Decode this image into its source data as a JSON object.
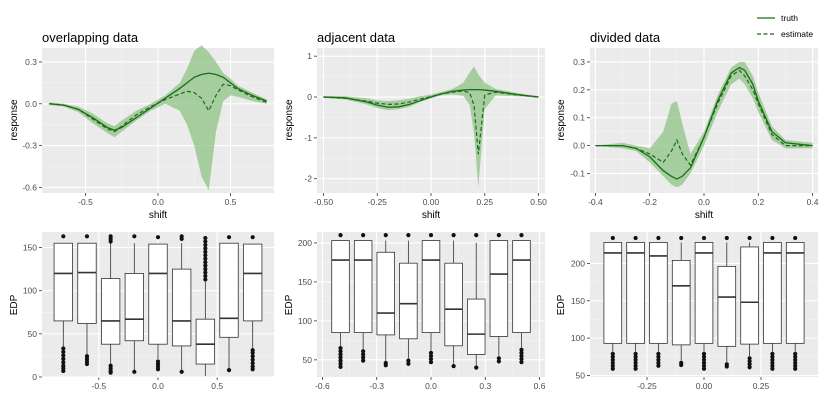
{
  "legend": {
    "items": [
      {
        "label": "truth",
        "style": "solid"
      },
      {
        "label": "estimate",
        "style": "dashed"
      }
    ]
  },
  "colors": {
    "panel_bg": "#ebebeb",
    "grid_major": "#ffffff",
    "line": "#1a6b1a",
    "band": "#8fc384",
    "box_fill": "#ffffff",
    "box_stroke": "#333333"
  },
  "chart_data": [
    {
      "type": "line",
      "title": "overlapping data",
      "xlabel": "shift",
      "ylabel": "response",
      "xlim": [
        -0.8,
        0.8
      ],
      "ylim": [
        -0.64,
        0.4
      ],
      "xticks": [
        -0.5,
        0.0,
        0.5
      ],
      "xtick_labels": [
        "-0.5",
        "0.0",
        "0.5"
      ],
      "yticks": [
        -0.6,
        -0.3,
        0.0,
        0.3
      ],
      "ytick_labels": [
        "-0.6",
        "-0.3",
        "0.0",
        "0.3"
      ],
      "x": [
        -0.75,
        -0.65,
        -0.55,
        -0.45,
        -0.35,
        -0.3,
        -0.25,
        -0.15,
        -0.05,
        0.05,
        0.15,
        0.2,
        0.25,
        0.3,
        0.35,
        0.4,
        0.45,
        0.5,
        0.55,
        0.65,
        0.75
      ],
      "truth": [
        0.0,
        -0.01,
        -0.04,
        -0.1,
        -0.17,
        -0.19,
        -0.17,
        -0.1,
        -0.03,
        0.04,
        0.11,
        0.15,
        0.19,
        0.21,
        0.22,
        0.21,
        0.19,
        0.15,
        0.11,
        0.06,
        0.02
      ],
      "estimate": [
        0.0,
        -0.01,
        -0.04,
        -0.11,
        -0.18,
        -0.2,
        -0.16,
        -0.08,
        -0.02,
        0.03,
        0.07,
        0.09,
        0.08,
        0.04,
        -0.05,
        0.06,
        0.14,
        0.13,
        0.1,
        0.05,
        0.01
      ],
      "lower": [
        -0.01,
        -0.02,
        -0.06,
        -0.14,
        -0.21,
        -0.24,
        -0.2,
        -0.12,
        -0.05,
        0.0,
        -0.05,
        -0.15,
        -0.3,
        -0.52,
        -0.62,
        -0.2,
        0.02,
        0.06,
        0.05,
        0.02,
        0.0
      ],
      "upper": [
        0.01,
        0.0,
        -0.02,
        -0.07,
        -0.14,
        -0.16,
        -0.12,
        -0.05,
        0.0,
        0.06,
        0.15,
        0.25,
        0.38,
        0.42,
        0.37,
        0.3,
        0.22,
        0.18,
        0.13,
        0.08,
        0.03
      ]
    },
    {
      "type": "line",
      "title": "adjacent data",
      "xlabel": "shift",
      "ylabel": "response",
      "xlim": [
        -0.53,
        0.53
      ],
      "ylim": [
        -2.35,
        1.2
      ],
      "xticks": [
        -0.5,
        -0.25,
        0.0,
        0.25,
        0.5
      ],
      "xtick_labels": [
        "-0.50",
        "-0.25",
        "0.00",
        "0.25",
        "0.50"
      ],
      "yticks": [
        -2,
        -1,
        0,
        1
      ],
      "ytick_labels": [
        "-2",
        "-1",
        "0",
        "1"
      ],
      "x": [
        -0.5,
        -0.4,
        -0.3,
        -0.25,
        -0.2,
        -0.15,
        -0.1,
        -0.05,
        0.0,
        0.05,
        0.1,
        0.15,
        0.18,
        0.2,
        0.22,
        0.25,
        0.3,
        0.4,
        0.5
      ],
      "truth": [
        0.0,
        -0.02,
        -0.12,
        -0.2,
        -0.25,
        -0.24,
        -0.18,
        -0.09,
        0.0,
        0.08,
        0.14,
        0.17,
        0.18,
        0.18,
        0.18,
        0.17,
        0.14,
        0.06,
        0.0
      ],
      "estimate": [
        0.0,
        -0.03,
        -0.1,
        -0.15,
        -0.18,
        -0.17,
        -0.12,
        -0.05,
        0.01,
        0.08,
        0.12,
        0.15,
        0.1,
        -0.2,
        -1.4,
        0.05,
        0.12,
        0.05,
        0.0
      ],
      "lower": [
        -0.02,
        -0.06,
        -0.18,
        -0.27,
        -0.32,
        -0.3,
        -0.24,
        -0.12,
        -0.03,
        0.04,
        0.06,
        0.03,
        -0.2,
        -0.9,
        -2.2,
        -0.3,
        0.04,
        0.02,
        -0.02
      ],
      "upper": [
        0.02,
        0.02,
        -0.03,
        -0.08,
        -0.1,
        -0.08,
        -0.04,
        0.02,
        0.06,
        0.13,
        0.2,
        0.35,
        0.6,
        0.75,
        0.55,
        0.35,
        0.2,
        0.1,
        0.02
      ]
    },
    {
      "type": "line",
      "title": "divided data",
      "xlabel": "shift",
      "ylabel": "response",
      "xlim": [
        -0.42,
        0.42
      ],
      "ylim": [
        -0.17,
        0.35
      ],
      "xticks": [
        -0.4,
        -0.2,
        0.0,
        0.2,
        0.4
      ],
      "xtick_labels": [
        "-0.4",
        "-0.2",
        "0.0",
        "0.2",
        "0.4"
      ],
      "yticks": [
        -0.1,
        0.0,
        0.1,
        0.2,
        0.3
      ],
      "ytick_labels": [
        "-0.1",
        "0.0",
        "0.1",
        "0.2",
        "0.3"
      ],
      "x": [
        -0.4,
        -0.3,
        -0.25,
        -0.2,
        -0.15,
        -0.12,
        -0.1,
        -0.08,
        -0.05,
        0.0,
        0.05,
        0.1,
        0.13,
        0.15,
        0.18,
        0.2,
        0.25,
        0.3,
        0.4
      ],
      "truth": [
        0.0,
        0.0,
        -0.01,
        -0.04,
        -0.09,
        -0.11,
        -0.12,
        -0.11,
        -0.08,
        0.03,
        0.16,
        0.26,
        0.28,
        0.27,
        0.22,
        0.16,
        0.05,
        0.01,
        0.0
      ],
      "estimate": [
        0.0,
        0.0,
        -0.01,
        -0.03,
        -0.06,
        -0.02,
        0.02,
        -0.03,
        -0.07,
        0.03,
        0.15,
        0.25,
        0.27,
        0.25,
        0.2,
        0.15,
        0.04,
        0.0,
        0.0
      ],
      "lower": [
        0.0,
        -0.01,
        -0.02,
        -0.06,
        -0.11,
        -0.14,
        -0.15,
        -0.14,
        -0.1,
        0.0,
        0.12,
        0.22,
        0.24,
        0.22,
        0.17,
        0.12,
        0.02,
        -0.01,
        -0.01
      ],
      "upper": [
        0.0,
        0.01,
        0.0,
        -0.01,
        0.05,
        0.15,
        0.16,
        0.08,
        -0.03,
        0.05,
        0.18,
        0.28,
        0.3,
        0.3,
        0.25,
        0.19,
        0.07,
        0.02,
        0.01
      ]
    },
    {
      "type": "box",
      "xlabel": "",
      "ylabel": "EDP",
      "xlim": [
        -0.98,
        0.98
      ],
      "ylim": [
        0,
        168
      ],
      "xticks": [
        -0.5,
        0.0,
        0.5
      ],
      "xtick_labels": [
        "-0.5",
        "0.0",
        "0.5"
      ],
      "yticks": [
        0,
        50,
        100,
        150
      ],
      "ytick_labels": [
        "0",
        "50",
        "100",
        "150"
      ],
      "boxes": [
        {
          "x": -0.8,
          "q1": 65,
          "median": 120,
          "q3": 155,
          "whisker_low": 34,
          "whisker_high": 155,
          "outliers": [
            33,
            29,
            25,
            21,
            17,
            13,
            10,
            7,
            163
          ]
        },
        {
          "x": -0.6,
          "q1": 62,
          "median": 121,
          "q3": 155,
          "whisker_low": 26,
          "whisker_high": 155,
          "outliers": [
            24,
            21,
            18,
            15,
            163
          ]
        },
        {
          "x": -0.4,
          "q1": 38,
          "median": 65,
          "q3": 114,
          "whisker_low": 15,
          "whisker_high": 155,
          "outliers": [
            13,
            10,
            7,
            5,
            157,
            160,
            163
          ]
        },
        {
          "x": -0.2,
          "q1": 42,
          "median": 67,
          "q3": 120,
          "whisker_low": 8,
          "whisker_high": 155,
          "outliers": [
            6,
            163
          ]
        },
        {
          "x": 0.0,
          "q1": 38,
          "median": 120,
          "q3": 154,
          "whisker_low": 21,
          "whisker_high": 154,
          "outliers": [
            18,
            15,
            12,
            9,
            162
          ]
        },
        {
          "x": 0.2,
          "q1": 36,
          "median": 65,
          "q3": 125,
          "whisker_low": 8,
          "whisker_high": 155,
          "outliers": [
            6,
            160,
            163
          ]
        },
        {
          "x": 0.4,
          "q1": 15,
          "median": 38,
          "q3": 67,
          "whisker_low": 1,
          "whisker_high": 110,
          "outliers": [
            113,
            117,
            121,
            125,
            129,
            133,
            137,
            141,
            145,
            149,
            153,
            157,
            161
          ]
        },
        {
          "x": 0.6,
          "q1": 46,
          "median": 68,
          "q3": 155,
          "whisker_low": 10,
          "whisker_high": 155,
          "outliers": [
            8,
            162
          ]
        },
        {
          "x": 0.8,
          "q1": 65,
          "median": 120,
          "q3": 154,
          "whisker_low": 33,
          "whisker_high": 154,
          "outliers": [
            31,
            28,
            24,
            20,
            16,
            12,
            9,
            162
          ]
        }
      ]
    },
    {
      "type": "box",
      "xlabel": "",
      "ylabel": "EDP",
      "xlim": [
        -0.63,
        0.63
      ],
      "ylim": [
        28,
        214
      ],
      "xticks": [
        -0.6,
        -0.3,
        0.0,
        0.3,
        0.6
      ],
      "xtick_labels": [
        "-0.6",
        "-0.3",
        "0.0",
        "0.3",
        "0.6"
      ],
      "yticks": [
        50,
        100,
        150,
        200
      ],
      "ytick_labels": [
        "50",
        "100",
        "150",
        "200"
      ],
      "boxes": [
        {
          "x": -0.5,
          "q1": 85,
          "median": 178,
          "q3": 203,
          "whisker_low": 68,
          "whisker_high": 203,
          "outliers": [
            65,
            61,
            57,
            53,
            49,
            45,
            41,
            210
          ]
        },
        {
          "x": -0.375,
          "q1": 85,
          "median": 178,
          "q3": 203,
          "whisker_low": 64,
          "whisker_high": 203,
          "outliers": [
            61,
            57,
            53,
            49,
            210
          ]
        },
        {
          "x": -0.25,
          "q1": 82,
          "median": 110,
          "q3": 188,
          "whisker_low": 48,
          "whisker_high": 203,
          "outliers": [
            46,
            43,
            210
          ]
        },
        {
          "x": -0.125,
          "q1": 77,
          "median": 122,
          "q3": 174,
          "whisker_low": 52,
          "whisker_high": 203,
          "outliers": [
            49,
            45,
            210
          ]
        },
        {
          "x": 0.0,
          "q1": 85,
          "median": 178,
          "q3": 203,
          "whisker_low": 62,
          "whisker_high": 203,
          "outliers": [
            59,
            55,
            51,
            47,
            210
          ]
        },
        {
          "x": 0.125,
          "q1": 68,
          "median": 115,
          "q3": 174,
          "whisker_low": 45,
          "whisker_high": 203,
          "outliers": [
            42,
            210
          ]
        },
        {
          "x": 0.25,
          "q1": 57,
          "median": 83,
          "q3": 128,
          "whisker_low": 42,
          "whisker_high": 200,
          "outliers": [
            40,
            210
          ]
        },
        {
          "x": 0.375,
          "q1": 80,
          "median": 160,
          "q3": 203,
          "whisker_low": 55,
          "whisker_high": 203,
          "outliers": [
            52,
            48,
            210
          ]
        },
        {
          "x": 0.5,
          "q1": 85,
          "median": 178,
          "q3": 203,
          "whisker_low": 66,
          "whisker_high": 203,
          "outliers": [
            63,
            59,
            55,
            51,
            47,
            210
          ]
        }
      ]
    },
    {
      "type": "box",
      "xlabel": "",
      "ylabel": "EDP",
      "xlim": [
        -0.5,
        0.5
      ],
      "ylim": [
        48,
        242
      ],
      "xticks": [
        -0.25,
        0.0,
        0.25
      ],
      "xtick_labels": [
        "-0.25",
        "0.00",
        "0.25"
      ],
      "yticks": [
        50,
        100,
        150,
        200
      ],
      "ytick_labels": [
        "50",
        "100",
        "150",
        "200"
      ],
      "boxes": [
        {
          "x": -0.4,
          "q1": 93,
          "median": 214,
          "q3": 228,
          "whisker_low": 82,
          "whisker_high": 228,
          "outliers": [
            79,
            75,
            71,
            67,
            63,
            59,
            234
          ]
        },
        {
          "x": -0.3,
          "q1": 93,
          "median": 214,
          "q3": 228,
          "whisker_low": 82,
          "whisker_high": 228,
          "outliers": [
            79,
            75,
            71,
            67,
            63,
            59,
            234
          ]
        },
        {
          "x": -0.2,
          "q1": 93,
          "median": 210,
          "q3": 228,
          "whisker_low": 82,
          "whisker_high": 228,
          "outliers": [
            79,
            75,
            71,
            67,
            63,
            234
          ]
        },
        {
          "x": -0.1,
          "q1": 91,
          "median": 170,
          "q3": 204,
          "whisker_low": 70,
          "whisker_high": 228,
          "outliers": [
            67,
            64,
            234
          ]
        },
        {
          "x": 0.0,
          "q1": 93,
          "median": 214,
          "q3": 228,
          "whisker_low": 82,
          "whisker_high": 228,
          "outliers": [
            79,
            75,
            71,
            67,
            63,
            59,
            234
          ]
        },
        {
          "x": 0.1,
          "q1": 89,
          "median": 155,
          "q3": 196,
          "whisker_low": 68,
          "whisker_high": 228,
          "outliers": [
            65,
            62,
            234
          ]
        },
        {
          "x": 0.2,
          "q1": 92,
          "median": 148,
          "q3": 222,
          "whisker_low": 76,
          "whisker_high": 228,
          "outliers": [
            73,
            69,
            65,
            61,
            234
          ]
        },
        {
          "x": 0.3,
          "q1": 93,
          "median": 214,
          "q3": 228,
          "whisker_low": 82,
          "whisker_high": 228,
          "outliers": [
            79,
            75,
            71,
            67,
            63,
            59,
            234
          ]
        },
        {
          "x": 0.4,
          "q1": 93,
          "median": 214,
          "q3": 228,
          "whisker_low": 82,
          "whisker_high": 228,
          "outliers": [
            79,
            75,
            71,
            67,
            63,
            59,
            234
          ]
        }
      ]
    }
  ]
}
